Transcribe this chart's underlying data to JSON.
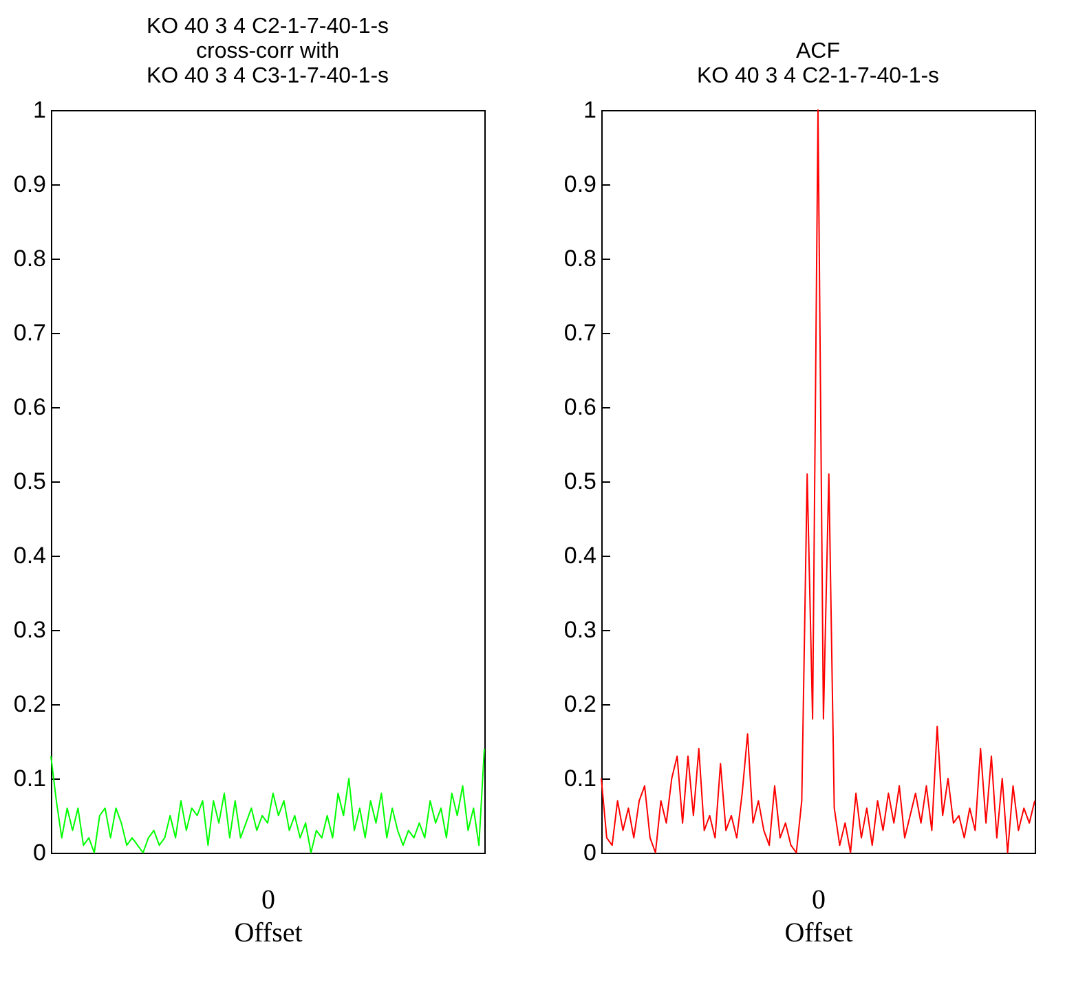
{
  "chart_data": [
    {
      "type": "line",
      "title": "KO 40 3 4 C2-1-7-40-1-s\ncross-corr with\nKO 40 3 4 C3-1-7-40-1-s",
      "xlabel": "Offset",
      "categories": [
        null,
        null,
        null,
        null,
        null,
        null,
        null,
        null,
        null,
        null,
        null,
        null,
        null,
        null,
        null,
        null,
        null,
        null,
        null,
        null,
        null,
        null,
        null,
        null,
        null,
        null,
        null,
        null,
        null,
        null,
        null,
        null,
        null,
        null,
        null,
        null,
        null,
        null,
        null,
        null,
        "0",
        null,
        null,
        null,
        null,
        null,
        null,
        null,
        null,
        null,
        null,
        null,
        null,
        null,
        null,
        null,
        null,
        null,
        null,
        null,
        null,
        null,
        null,
        null,
        null,
        null,
        null,
        null,
        null,
        null,
        null,
        null,
        null,
        null,
        null,
        null,
        null,
        null,
        null,
        null,
        null
      ],
      "series": [
        {
          "color": "#00ff00",
          "values": [
            0.13,
            0.07,
            0.02,
            0.06,
            0.03,
            0.06,
            0.01,
            0.02,
            0.0,
            0.05,
            0.06,
            0.02,
            0.06,
            0.04,
            0.01,
            0.02,
            0.01,
            0.0,
            0.02,
            0.03,
            0.01,
            0.02,
            0.05,
            0.02,
            0.07,
            0.03,
            0.06,
            0.05,
            0.07,
            0.01,
            0.07,
            0.04,
            0.08,
            0.02,
            0.07,
            0.02,
            0.04,
            0.06,
            0.03,
            0.05,
            0.04,
            0.08,
            0.05,
            0.07,
            0.03,
            0.05,
            0.02,
            0.04,
            0.0,
            0.03,
            0.02,
            0.05,
            0.02,
            0.08,
            0.05,
            0.1,
            0.03,
            0.06,
            0.02,
            0.07,
            0.04,
            0.08,
            0.02,
            0.06,
            0.03,
            0.01,
            0.03,
            0.02,
            0.04,
            0.02,
            0.07,
            0.04,
            0.06,
            0.02,
            0.08,
            0.05,
            0.09,
            0.03,
            0.06,
            0.01,
            0.14
          ]
        }
      ],
      "ylim": [
        0,
        1
      ],
      "yticks": [
        0,
        0.1,
        0.2,
        0.3,
        0.4,
        0.5,
        0.6,
        0.7,
        0.8,
        0.9,
        1
      ],
      "grid": false
    },
    {
      "type": "line",
      "title": "ACF\nKO 40 3 4 C2-1-7-40-1-s",
      "xlabel": "Offset",
      "categories": [
        null,
        null,
        null,
        null,
        null,
        null,
        null,
        null,
        null,
        null,
        null,
        null,
        null,
        null,
        null,
        null,
        null,
        null,
        null,
        null,
        null,
        null,
        null,
        null,
        null,
        null,
        null,
        null,
        null,
        null,
        null,
        null,
        null,
        null,
        null,
        null,
        null,
        null,
        null,
        null,
        "0",
        null,
        null,
        null,
        null,
        null,
        null,
        null,
        null,
        null,
        null,
        null,
        null,
        null,
        null,
        null,
        null,
        null,
        null,
        null,
        null,
        null,
        null,
        null,
        null,
        null,
        null,
        null,
        null,
        null,
        null,
        null,
        null,
        null,
        null,
        null,
        null,
        null,
        null,
        null,
        null
      ],
      "series": [
        {
          "color": "#ff0000",
          "values": [
            0.1,
            0.02,
            0.01,
            0.07,
            0.03,
            0.06,
            0.02,
            0.07,
            0.09,
            0.02,
            0.0,
            0.07,
            0.04,
            0.1,
            0.13,
            0.04,
            0.13,
            0.05,
            0.14,
            0.03,
            0.05,
            0.02,
            0.12,
            0.03,
            0.05,
            0.02,
            0.08,
            0.16,
            0.04,
            0.07,
            0.03,
            0.01,
            0.09,
            0.02,
            0.04,
            0.01,
            0.0,
            0.07,
            0.51,
            0.18,
            1,
            0.18,
            0.51,
            0.06,
            0.01,
            0.04,
            0.0,
            0.08,
            0.02,
            0.06,
            0.01,
            0.07,
            0.03,
            0.08,
            0.04,
            0.09,
            0.02,
            0.05,
            0.08,
            0.04,
            0.09,
            0.03,
            0.17,
            0.05,
            0.1,
            0.04,
            0.05,
            0.02,
            0.06,
            0.03,
            0.14,
            0.04,
            0.13,
            0.02,
            0.1,
            0.0,
            0.09,
            0.03,
            0.06,
            0.04,
            0.07
          ]
        }
      ],
      "ylim": [
        0,
        1
      ],
      "yticks": [
        0,
        0.1,
        0.2,
        0.3,
        0.4,
        0.5,
        0.6,
        0.7,
        0.8,
        0.9,
        1
      ],
      "grid": false
    }
  ]
}
